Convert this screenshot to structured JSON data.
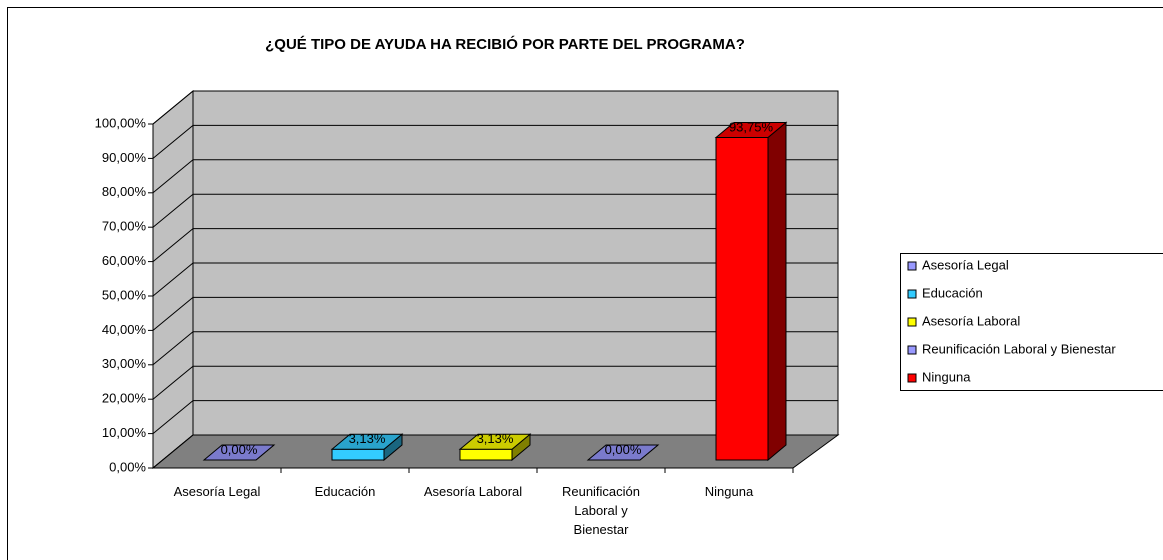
{
  "chart_data": {
    "type": "bar3d",
    "title": "¿QUÉ TIPO DE AYUDA HA RECIBIÓ POR PARTE DEL PROGRAMA?",
    "categories": [
      "Asesoría Legal",
      "Educación",
      "Asesoría Laboral",
      "Reunificación Laboral y Bienestar",
      "Ninguna"
    ],
    "values": [
      0,
      3.13,
      3.13,
      0,
      93.75
    ],
    "value_labels": [
      "0,00%",
      "3,13%",
      "3,13%",
      "0,00%",
      "93,75%"
    ],
    "colors": [
      "#9999ff",
      "#33ccff",
      "#ffff00",
      "#9999ff",
      "#ff0000"
    ],
    "ylim": [
      0,
      100
    ],
    "yticks": [
      {
        "value": 0,
        "label": "0,00%"
      },
      {
        "value": 10,
        "label": "10,00%"
      },
      {
        "value": 20,
        "label": "20,00%"
      },
      {
        "value": 30,
        "label": "30,00%"
      },
      {
        "value": 40,
        "label": "40,00%"
      },
      {
        "value": 50,
        "label": "50,00%"
      },
      {
        "value": 60,
        "label": "60,00%"
      },
      {
        "value": 70,
        "label": "70,00%"
      },
      {
        "value": 80,
        "label": "80,00%"
      },
      {
        "value": 90,
        "label": "90,00%"
      },
      {
        "value": 100,
        "label": "100,00%"
      }
    ],
    "grid": true,
    "legend": "right"
  }
}
